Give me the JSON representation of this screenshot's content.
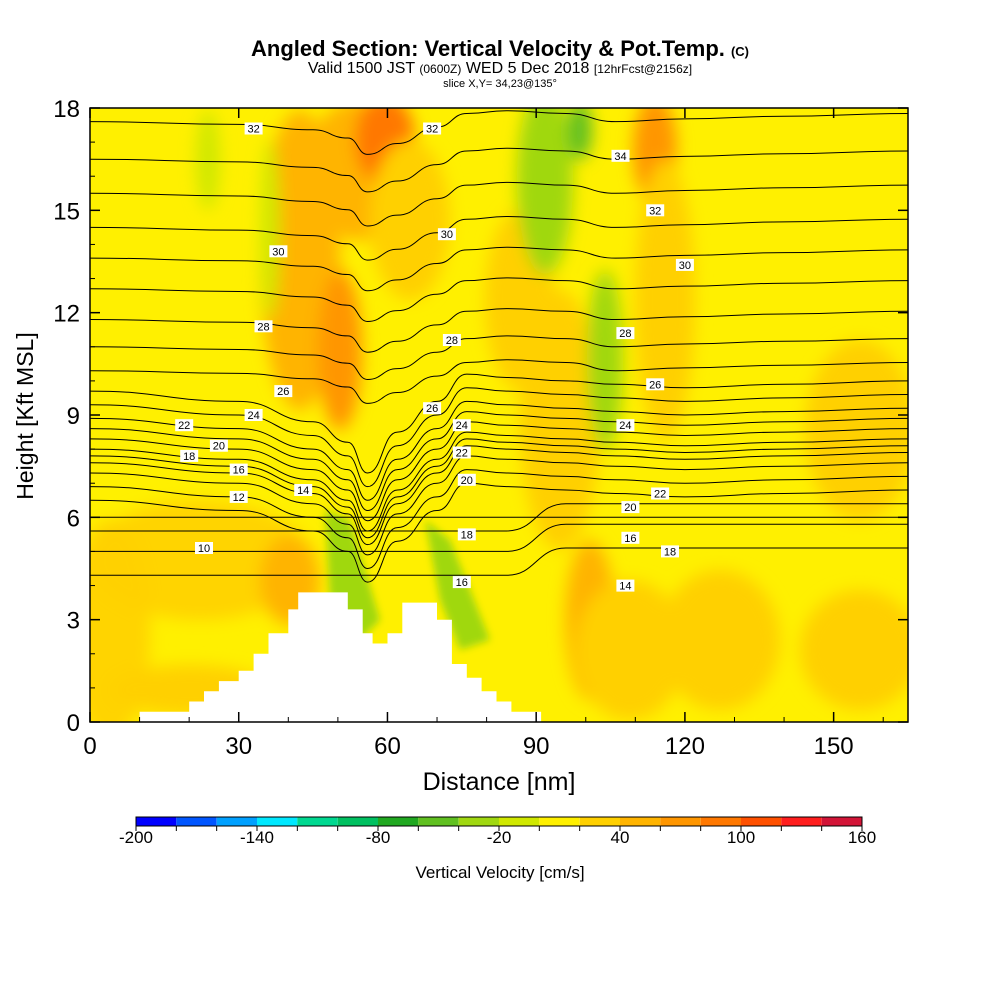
{
  "title": {
    "main": "Angled Section: Vertical Velocity & Pot.Temp.",
    "main_tag": "(C)",
    "valid_prefix": "Valid 1500 JST",
    "valid_z": "(0600Z)",
    "valid_date": "WED 5 Dec 2018",
    "forecast": "[12hrFcst@2156z]",
    "slice": "slice X,Y= 34,23@135°"
  },
  "chart_data": {
    "type": "heatmap",
    "xlabel": "Distance [nm]",
    "ylabel": "Height [Kft MSL]",
    "xlim": [
      0,
      165
    ],
    "ylim": [
      0,
      18
    ],
    "x_ticks": [
      0,
      30,
      60,
      90,
      120,
      150
    ],
    "y_ticks": [
      0,
      3,
      6,
      9,
      12,
      15,
      18
    ],
    "colorbar": {
      "label": "Vertical Velocity [cm/s]",
      "min": -200,
      "max": 160,
      "step": 20,
      "tick_labels": [
        "-200",
        "-140",
        "-80",
        "-20",
        "40",
        "100",
        "160"
      ],
      "colors": [
        "#0000ff",
        "#0055ff",
        "#00a0ff",
        "#00e8ff",
        "#00d890",
        "#00c060",
        "#20a820",
        "#60c020",
        "#a0d810",
        "#d0e800",
        "#fff000",
        "#ffd000",
        "#ffb400",
        "#ff9600",
        "#ff7800",
        "#ff5000",
        "#ff1e1e",
        "#d21437",
        "#aa1250",
        "#821064",
        "#5a0a8c"
      ]
    },
    "contour_variable": "Potential Temperature (C)",
    "contour_levels": [
      10,
      12,
      14,
      16,
      18,
      20,
      22,
      24,
      26,
      28,
      30,
      32,
      34
    ],
    "contour_labels": [
      {
        "x": 23,
        "y": 5.1,
        "text": "10"
      },
      {
        "x": 30,
        "y": 6.6,
        "text": "12"
      },
      {
        "x": 43,
        "y": 6.8,
        "text": "14"
      },
      {
        "x": 30,
        "y": 7.4,
        "text": "16"
      },
      {
        "x": 20,
        "y": 7.8,
        "text": "18"
      },
      {
        "x": 26,
        "y": 8.1,
        "text": "20"
      },
      {
        "x": 19,
        "y": 8.7,
        "text": "22"
      },
      {
        "x": 33,
        "y": 9.0,
        "text": "24"
      },
      {
        "x": 39,
        "y": 9.7,
        "text": "26"
      },
      {
        "x": 35,
        "y": 11.6,
        "text": "28"
      },
      {
        "x": 38,
        "y": 13.8,
        "text": "30"
      },
      {
        "x": 33,
        "y": 17.4,
        "text": "32"
      },
      {
        "x": 75,
        "y": 4.1,
        "text": "16"
      },
      {
        "x": 76,
        "y": 5.5,
        "text": "18"
      },
      {
        "x": 76,
        "y": 7.1,
        "text": "20"
      },
      {
        "x": 75,
        "y": 7.9,
        "text": "22"
      },
      {
        "x": 75,
        "y": 8.7,
        "text": "24"
      },
      {
        "x": 69,
        "y": 9.2,
        "text": "26"
      },
      {
        "x": 73,
        "y": 11.2,
        "text": "28"
      },
      {
        "x": 72,
        "y": 14.3,
        "text": "30"
      },
      {
        "x": 69,
        "y": 17.4,
        "text": "32"
      },
      {
        "x": 108,
        "y": 4.0,
        "text": "14"
      },
      {
        "x": 109,
        "y": 5.4,
        "text": "16"
      },
      {
        "x": 117,
        "y": 5.0,
        "text": "18"
      },
      {
        "x": 109,
        "y": 6.3,
        "text": "20"
      },
      {
        "x": 115,
        "y": 6.7,
        "text": "22"
      },
      {
        "x": 108,
        "y": 8.7,
        "text": "24"
      },
      {
        "x": 114,
        "y": 9.9,
        "text": "26"
      },
      {
        "x": 108,
        "y": 11.4,
        "text": "28"
      },
      {
        "x": 120,
        "y": 13.4,
        "text": "30"
      },
      {
        "x": 114,
        "y": 15.0,
        "text": "32"
      },
      {
        "x": 107,
        "y": 16.6,
        "text": "34"
      }
    ],
    "terrain_profile": [
      [
        0,
        0
      ],
      [
        10,
        0
      ],
      [
        10,
        0.3
      ],
      [
        20,
        0.3
      ],
      [
        20,
        0.6
      ],
      [
        23,
        0.6
      ],
      [
        23,
        0.9
      ],
      [
        26,
        0.9
      ],
      [
        26,
        1.2
      ],
      [
        30,
        1.2
      ],
      [
        30,
        1.5
      ],
      [
        33,
        1.5
      ],
      [
        33,
        2.0
      ],
      [
        36,
        2.0
      ],
      [
        36,
        2.6
      ],
      [
        40,
        2.6
      ],
      [
        40,
        3.3
      ],
      [
        42,
        3.3
      ],
      [
        42,
        3.8
      ],
      [
        52,
        3.8
      ],
      [
        52,
        3.3
      ],
      [
        55,
        3.3
      ],
      [
        55,
        2.6
      ],
      [
        57,
        2.6
      ],
      [
        57,
        2.3
      ],
      [
        60,
        2.3
      ],
      [
        60,
        2.6
      ],
      [
        63,
        2.6
      ],
      [
        63,
        3.5
      ],
      [
        70,
        3.5
      ],
      [
        70,
        3.0
      ],
      [
        73,
        3.0
      ],
      [
        73,
        1.7
      ],
      [
        76,
        1.7
      ],
      [
        76,
        1.3
      ],
      [
        79,
        1.3
      ],
      [
        79,
        0.9
      ],
      [
        82,
        0.9
      ],
      [
        82,
        0.6
      ],
      [
        85,
        0.6
      ],
      [
        85,
        0.3
      ],
      [
        91,
        0.3
      ],
      [
        91,
        0
      ],
      [
        0,
        0
      ]
    ],
    "grid": false
  },
  "colors": {
    "background": "#ffffff",
    "field_base": "#fff000",
    "contour_line": "#000000"
  }
}
